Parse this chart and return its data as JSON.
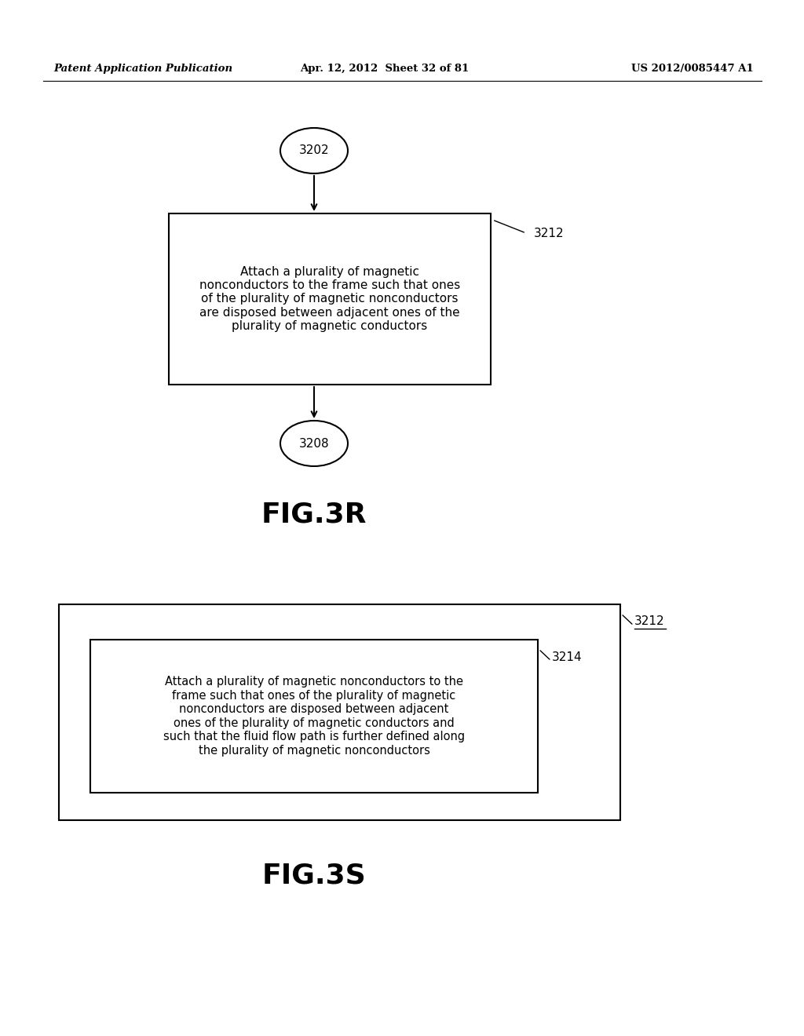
{
  "background_color": "#ffffff",
  "header_left": "Patent Application Publication",
  "header_center": "Apr. 12, 2012  Sheet 32 of 81",
  "header_right": "US 2012/0085447 A1",
  "header_fontsize": 9.5,
  "fig3r_title": "FIG.3R",
  "fig3r_title_fontsize": 26,
  "fig3s_title": "FIG.3S",
  "fig3s_title_fontsize": 26,
  "node_3202_label": "3202",
  "node_3208_label": "3208",
  "box_3212_label": "Attach a plurality of magnetic\nnonconductors to the frame such that ones\nof the plurality of magnetic nonconductors\nare disposed between adjacent ones of the\nplurality of magnetic conductors",
  "box_3212_ref": "3212",
  "outer_box_3212_ref": "3212",
  "inner_box_3214_ref": "3214",
  "inner_box_text": "Attach a plurality of magnetic nonconductors to the\nframe such that ones of the plurality of magnetic\nnonconductors are disposed between adjacent\nones of the plurality of magnetic conductors and\nsuch that the fluid flow path is further defined along\nthe plurality of magnetic nonconductors",
  "text_color": "#000000",
  "box_edge_color": "#000000",
  "arrow_color": "#000000"
}
